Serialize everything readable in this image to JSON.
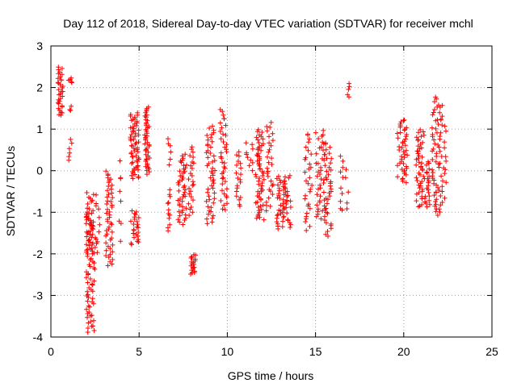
{
  "chart_data": {
    "type": "scatter",
    "title": "Day 112 of 2018, Sidereal Day-to-day VTEC variation (SDTVAR) for receiver mchl",
    "xlabel": "GPS time / hours",
    "ylabel": "SDTVAR / TECUs",
    "xlim": [
      0,
      25
    ],
    "ylim": [
      -4,
      3
    ],
    "xticks": [
      0,
      5,
      10,
      15,
      20,
      25
    ],
    "yticks": [
      -4,
      -3,
      -2,
      -1,
      0,
      1,
      2,
      3
    ],
    "grid": true,
    "marker": "plus",
    "color": "#ff0000",
    "clusters": [
      {
        "x": [
          0.4,
          0.7
        ],
        "y": [
          1.3,
          2.5
        ],
        "n": 34
      },
      {
        "x": [
          1.0,
          1.2
        ],
        "y": [
          2.1,
          2.25
        ],
        "n": 5
      },
      {
        "x": [
          1.05,
          1.15
        ],
        "y": [
          1.4,
          1.55
        ],
        "n": 3
      },
      {
        "x": [
          1.0,
          1.2
        ],
        "y": [
          0.2,
          0.8
        ],
        "n": 6
      },
      {
        "x": [
          2.0,
          2.5
        ],
        "y": [
          -3.9,
          -1.0
        ],
        "n": 70
      },
      {
        "x": [
          2.0,
          2.6
        ],
        "y": [
          -2.0,
          -0.5
        ],
        "n": 40
      },
      {
        "x": [
          2.6,
          2.8
        ],
        "y": [
          -2.0,
          -0.8
        ],
        "n": 6
      },
      {
        "x": [
          3.1,
          3.5
        ],
        "y": [
          -2.3,
          0.0
        ],
        "n": 50
      },
      {
        "x": [
          3.8,
          4.0
        ],
        "y": [
          -1.8,
          0.35
        ],
        "n": 8
      },
      {
        "x": [
          4.5,
          5.0
        ],
        "y": [
          -1.8,
          -0.95
        ],
        "n": 25
      },
      {
        "x": [
          4.5,
          5.0
        ],
        "y": [
          -0.2,
          1.4
        ],
        "n": 60
      },
      {
        "x": [
          5.3,
          5.6
        ],
        "y": [
          -0.1,
          1.55
        ],
        "n": 45
      },
      {
        "x": [
          6.6,
          6.8
        ],
        "y": [
          -1.5,
          -0.4
        ],
        "n": 12
      },
      {
        "x": [
          6.6,
          6.8
        ],
        "y": [
          0.1,
          0.85
        ],
        "n": 6
      },
      {
        "x": [
          7.2,
          7.7
        ],
        "y": [
          -1.3,
          0.4
        ],
        "n": 45
      },
      {
        "x": [
          7.8,
          8.1
        ],
        "y": [
          -1.1,
          0.6
        ],
        "n": 25
      },
      {
        "x": [
          7.9,
          8.2
        ],
        "y": [
          -2.5,
          -2.0
        ],
        "n": 20
      },
      {
        "x": [
          8.8,
          9.3
        ],
        "y": [
          -1.3,
          1.1
        ],
        "n": 50
      },
      {
        "x": [
          9.6,
          10.0
        ],
        "y": [
          -1.0,
          1.5
        ],
        "n": 40
      },
      {
        "x": [
          10.5,
          10.8
        ],
        "y": [
          -0.9,
          0.5
        ],
        "n": 20
      },
      {
        "x": [
          11.0,
          11.5
        ],
        "y": [
          0.0,
          0.7
        ],
        "n": 10
      },
      {
        "x": [
          11.6,
          12.1
        ],
        "y": [
          -1.2,
          1.0
        ],
        "n": 60
      },
      {
        "x": [
          12.2,
          12.6
        ],
        "y": [
          -1.0,
          1.2
        ],
        "n": 30
      },
      {
        "x": [
          12.8,
          13.6
        ],
        "y": [
          -1.4,
          -0.1
        ],
        "n": 60
      },
      {
        "x": [
          14.4,
          14.8
        ],
        "y": [
          -1.45,
          0.95
        ],
        "n": 30
      },
      {
        "x": [
          15.0,
          15.5
        ],
        "y": [
          -1.2,
          1.0
        ],
        "n": 40
      },
      {
        "x": [
          15.5,
          15.9
        ],
        "y": [
          -1.6,
          0.7
        ],
        "n": 40
      },
      {
        "x": [
          16.4,
          16.6
        ],
        "y": [
          -1.1,
          0.5
        ],
        "n": 10
      },
      {
        "x": [
          16.8,
          16.95
        ],
        "y": [
          1.75,
          2.1
        ],
        "n": 5
      },
      {
        "x": [
          16.7,
          16.9
        ],
        "y": [
          -1.05,
          0.1
        ],
        "n": 5
      },
      {
        "x": [
          19.6,
          20.2
        ],
        "y": [
          -0.3,
          1.25
        ],
        "n": 45
      },
      {
        "x": [
          20.7,
          21.2
        ],
        "y": [
          -0.9,
          1.0
        ],
        "n": 50
      },
      {
        "x": [
          21.2,
          21.5
        ],
        "y": [
          -0.9,
          0.25
        ],
        "n": 20
      },
      {
        "x": [
          21.6,
          22.0
        ],
        "y": [
          -1.1,
          1.8
        ],
        "n": 45
      },
      {
        "x": [
          22.0,
          22.4
        ],
        "y": [
          -1.0,
          1.6
        ],
        "n": 35
      }
    ]
  }
}
